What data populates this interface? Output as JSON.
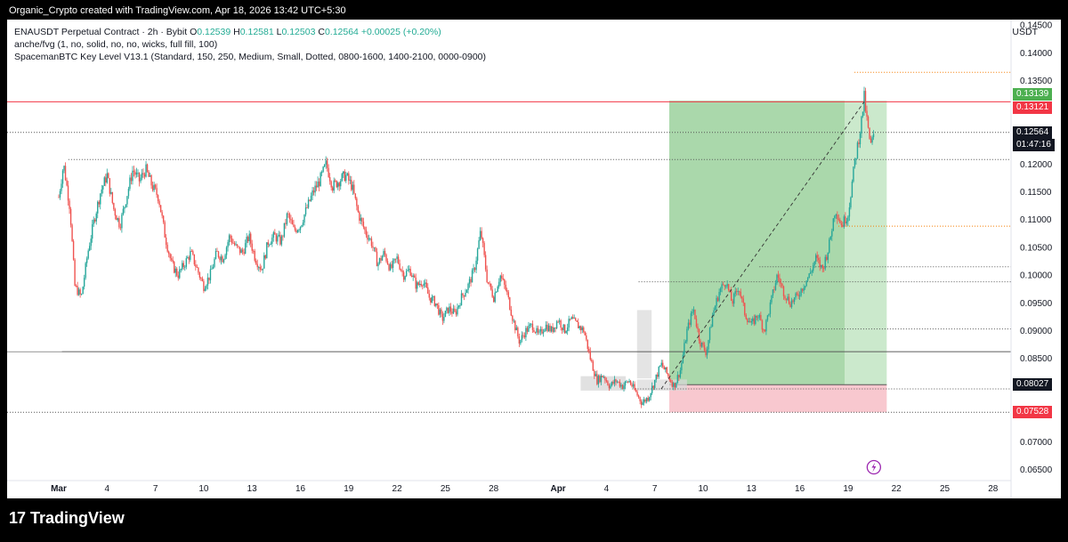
{
  "header": {
    "caption": "Organic_Crypto created with TradingView.com, Apr 18, 2026 13:42 UTC+5:30"
  },
  "legend": {
    "symbol": "ENAUSDT Perpetual Contract · 2h · Bybit",
    "o_key": "O",
    "o_val": "0.12539",
    "h_key": "H",
    "h_val": "0.12581",
    "l_key": "L",
    "l_val": "0.12503",
    "c_key": "C",
    "c_val": "0.12564",
    "change": "+0.00025 (+0.20%)",
    "indicator_1": "anche/fvg (1, no, solid, no, no, wicks, full fill, 100)",
    "indicator_2": "SpacemanBTC Key Level V13.1 (Standard, 150, 250, Medium, Small, Dotted, 0800-1600, 1400-2100, 0000-0900)"
  },
  "currency": "USDT",
  "footer": {
    "logo_mark": "17",
    "brand": "TradingView"
  },
  "colors": {
    "up": "#26a69a",
    "down": "#ef5350",
    "tp_zone": "#a5d6a7",
    "sl_zone": "#f8c8cf",
    "tp_tag": "#4caf50",
    "sl_tag": "#f23645"
  },
  "chart_data": {
    "type": "candlestick",
    "symbol": "ENAUSDT",
    "timeframe": "2h",
    "y_axis": {
      "min": 0.063,
      "max": 0.146,
      "ticks": [
        "0.14500",
        "0.14000",
        "0.13500",
        "0.13000",
        "0.12500",
        "0.12000",
        "0.11500",
        "0.11000",
        "0.10500",
        "0.10000",
        "0.09500",
        "0.09000",
        "0.08500",
        "0.08000",
        "0.07500",
        "0.07000",
        "0.06500"
      ]
    },
    "x_axis": {
      "labels": [
        "Mar",
        "4",
        "7",
        "10",
        "13",
        "16",
        "19",
        "22",
        "25",
        "28",
        "Apr",
        "4",
        "7",
        "10",
        "13",
        "16",
        "19",
        "22",
        "25",
        "28"
      ],
      "bold": [
        "Mar",
        "Apr"
      ]
    },
    "price_tags": {
      "tp": "0.13139",
      "entry_top": "0.13121",
      "last": "0.12564",
      "countdown": "01:47:16",
      "entry": "0.08027",
      "sl": "0.07528"
    },
    "close_path": [
      [
        0.0,
        0.114
      ],
      [
        0.3,
        0.12
      ],
      [
        0.7,
        0.112
      ],
      [
        1.0,
        0.098
      ],
      [
        1.4,
        0.096
      ],
      [
        1.8,
        0.104
      ],
      [
        2.2,
        0.11
      ],
      [
        2.6,
        0.115
      ],
      [
        3.0,
        0.118
      ],
      [
        3.4,
        0.112
      ],
      [
        3.8,
        0.109
      ],
      [
        4.2,
        0.114
      ],
      [
        4.6,
        0.119
      ],
      [
        5.0,
        0.117
      ],
      [
        5.4,
        0.119
      ],
      [
        5.8,
        0.116
      ],
      [
        6.2,
        0.114
      ],
      [
        6.6,
        0.107
      ],
      [
        7.0,
        0.102
      ],
      [
        7.4,
        0.1
      ],
      [
        7.8,
        0.102
      ],
      [
        8.2,
        0.104
      ],
      [
        8.6,
        0.101
      ],
      [
        9.0,
        0.098
      ],
      [
        9.4,
        0.1
      ],
      [
        9.8,
        0.104
      ],
      [
        10.2,
        0.103
      ],
      [
        10.6,
        0.107
      ],
      [
        11.0,
        0.105
      ],
      [
        11.4,
        0.104
      ],
      [
        11.8,
        0.107
      ],
      [
        12.2,
        0.103
      ],
      [
        12.6,
        0.101
      ],
      [
        13.0,
        0.106
      ],
      [
        13.4,
        0.107
      ],
      [
        13.8,
        0.106
      ],
      [
        14.2,
        0.111
      ],
      [
        14.6,
        0.108
      ],
      [
        15.0,
        0.109
      ],
      [
        15.4,
        0.112
      ],
      [
        15.8,
        0.115
      ],
      [
        16.2,
        0.117
      ],
      [
        16.6,
        0.12
      ],
      [
        17.0,
        0.116
      ],
      [
        17.4,
        0.117
      ],
      [
        17.8,
        0.118
      ],
      [
        18.2,
        0.116
      ],
      [
        18.6,
        0.111
      ],
      [
        19.0,
        0.108
      ],
      [
        19.4,
        0.106
      ],
      [
        19.8,
        0.102
      ],
      [
        20.2,
        0.104
      ],
      [
        20.6,
        0.101
      ],
      [
        21.0,
        0.103
      ],
      [
        21.4,
        0.1
      ],
      [
        21.8,
        0.101
      ],
      [
        22.2,
        0.098
      ],
      [
        22.6,
        0.099
      ],
      [
        23.0,
        0.096
      ],
      [
        23.4,
        0.095
      ],
      [
        23.8,
        0.092
      ],
      [
        24.2,
        0.094
      ],
      [
        24.6,
        0.093
      ],
      [
        25.0,
        0.096
      ],
      [
        25.4,
        0.098
      ],
      [
        25.8,
        0.101
      ],
      [
        26.2,
        0.108
      ],
      [
        26.6,
        0.099
      ],
      [
        27.0,
        0.096
      ],
      [
        27.4,
        0.1
      ],
      [
        27.8,
        0.097
      ],
      [
        28.2,
        0.092
      ],
      [
        28.6,
        0.088
      ],
      [
        29.0,
        0.09
      ],
      [
        29.4,
        0.091
      ],
      [
        29.8,
        0.089
      ],
      [
        30.2,
        0.091
      ],
      [
        30.6,
        0.09
      ],
      [
        31.0,
        0.092
      ],
      [
        31.4,
        0.09
      ],
      [
        31.8,
        0.092
      ],
      [
        32.2,
        0.091
      ],
      [
        32.6,
        0.09
      ],
      [
        33.0,
        0.085
      ],
      [
        33.4,
        0.081
      ],
      [
        33.8,
        0.082
      ],
      [
        34.2,
        0.08
      ],
      [
        34.6,
        0.081
      ],
      [
        35.0,
        0.08
      ],
      [
        35.4,
        0.081
      ],
      [
        35.8,
        0.079
      ],
      [
        36.2,
        0.077
      ],
      [
        36.6,
        0.078
      ],
      [
        37.0,
        0.081
      ],
      [
        37.4,
        0.084
      ],
      [
        37.8,
        0.082
      ],
      [
        38.2,
        0.08
      ],
      [
        38.6,
        0.083
      ],
      [
        39.0,
        0.09
      ],
      [
        39.4,
        0.094
      ],
      [
        39.8,
        0.088
      ],
      [
        40.2,
        0.086
      ],
      [
        40.6,
        0.093
      ],
      [
        41.0,
        0.097
      ],
      [
        41.4,
        0.099
      ],
      [
        41.8,
        0.095
      ],
      [
        42.2,
        0.098
      ],
      [
        42.6,
        0.093
      ],
      [
        43.0,
        0.091
      ],
      [
        43.4,
        0.093
      ],
      [
        43.8,
        0.09
      ],
      [
        44.2,
        0.095
      ],
      [
        44.6,
        0.1
      ],
      [
        45.0,
        0.097
      ],
      [
        45.4,
        0.095
      ],
      [
        45.8,
        0.096
      ],
      [
        46.2,
        0.098
      ],
      [
        46.6,
        0.1
      ],
      [
        47.0,
        0.103
      ],
      [
        47.4,
        0.101
      ],
      [
        47.8,
        0.105
      ],
      [
        48.2,
        0.112
      ],
      [
        48.6,
        0.109
      ],
      [
        49.0,
        0.111
      ],
      [
        49.4,
        0.12
      ],
      [
        49.8,
        0.127
      ],
      [
        50.0,
        0.132
      ],
      [
        50.2,
        0.127
      ],
      [
        50.4,
        0.123
      ],
      [
        50.6,
        0.12564
      ]
    ],
    "axis_days": {
      "Mar_day_offset": 0,
      "Apr_day_offset": 31
    }
  }
}
